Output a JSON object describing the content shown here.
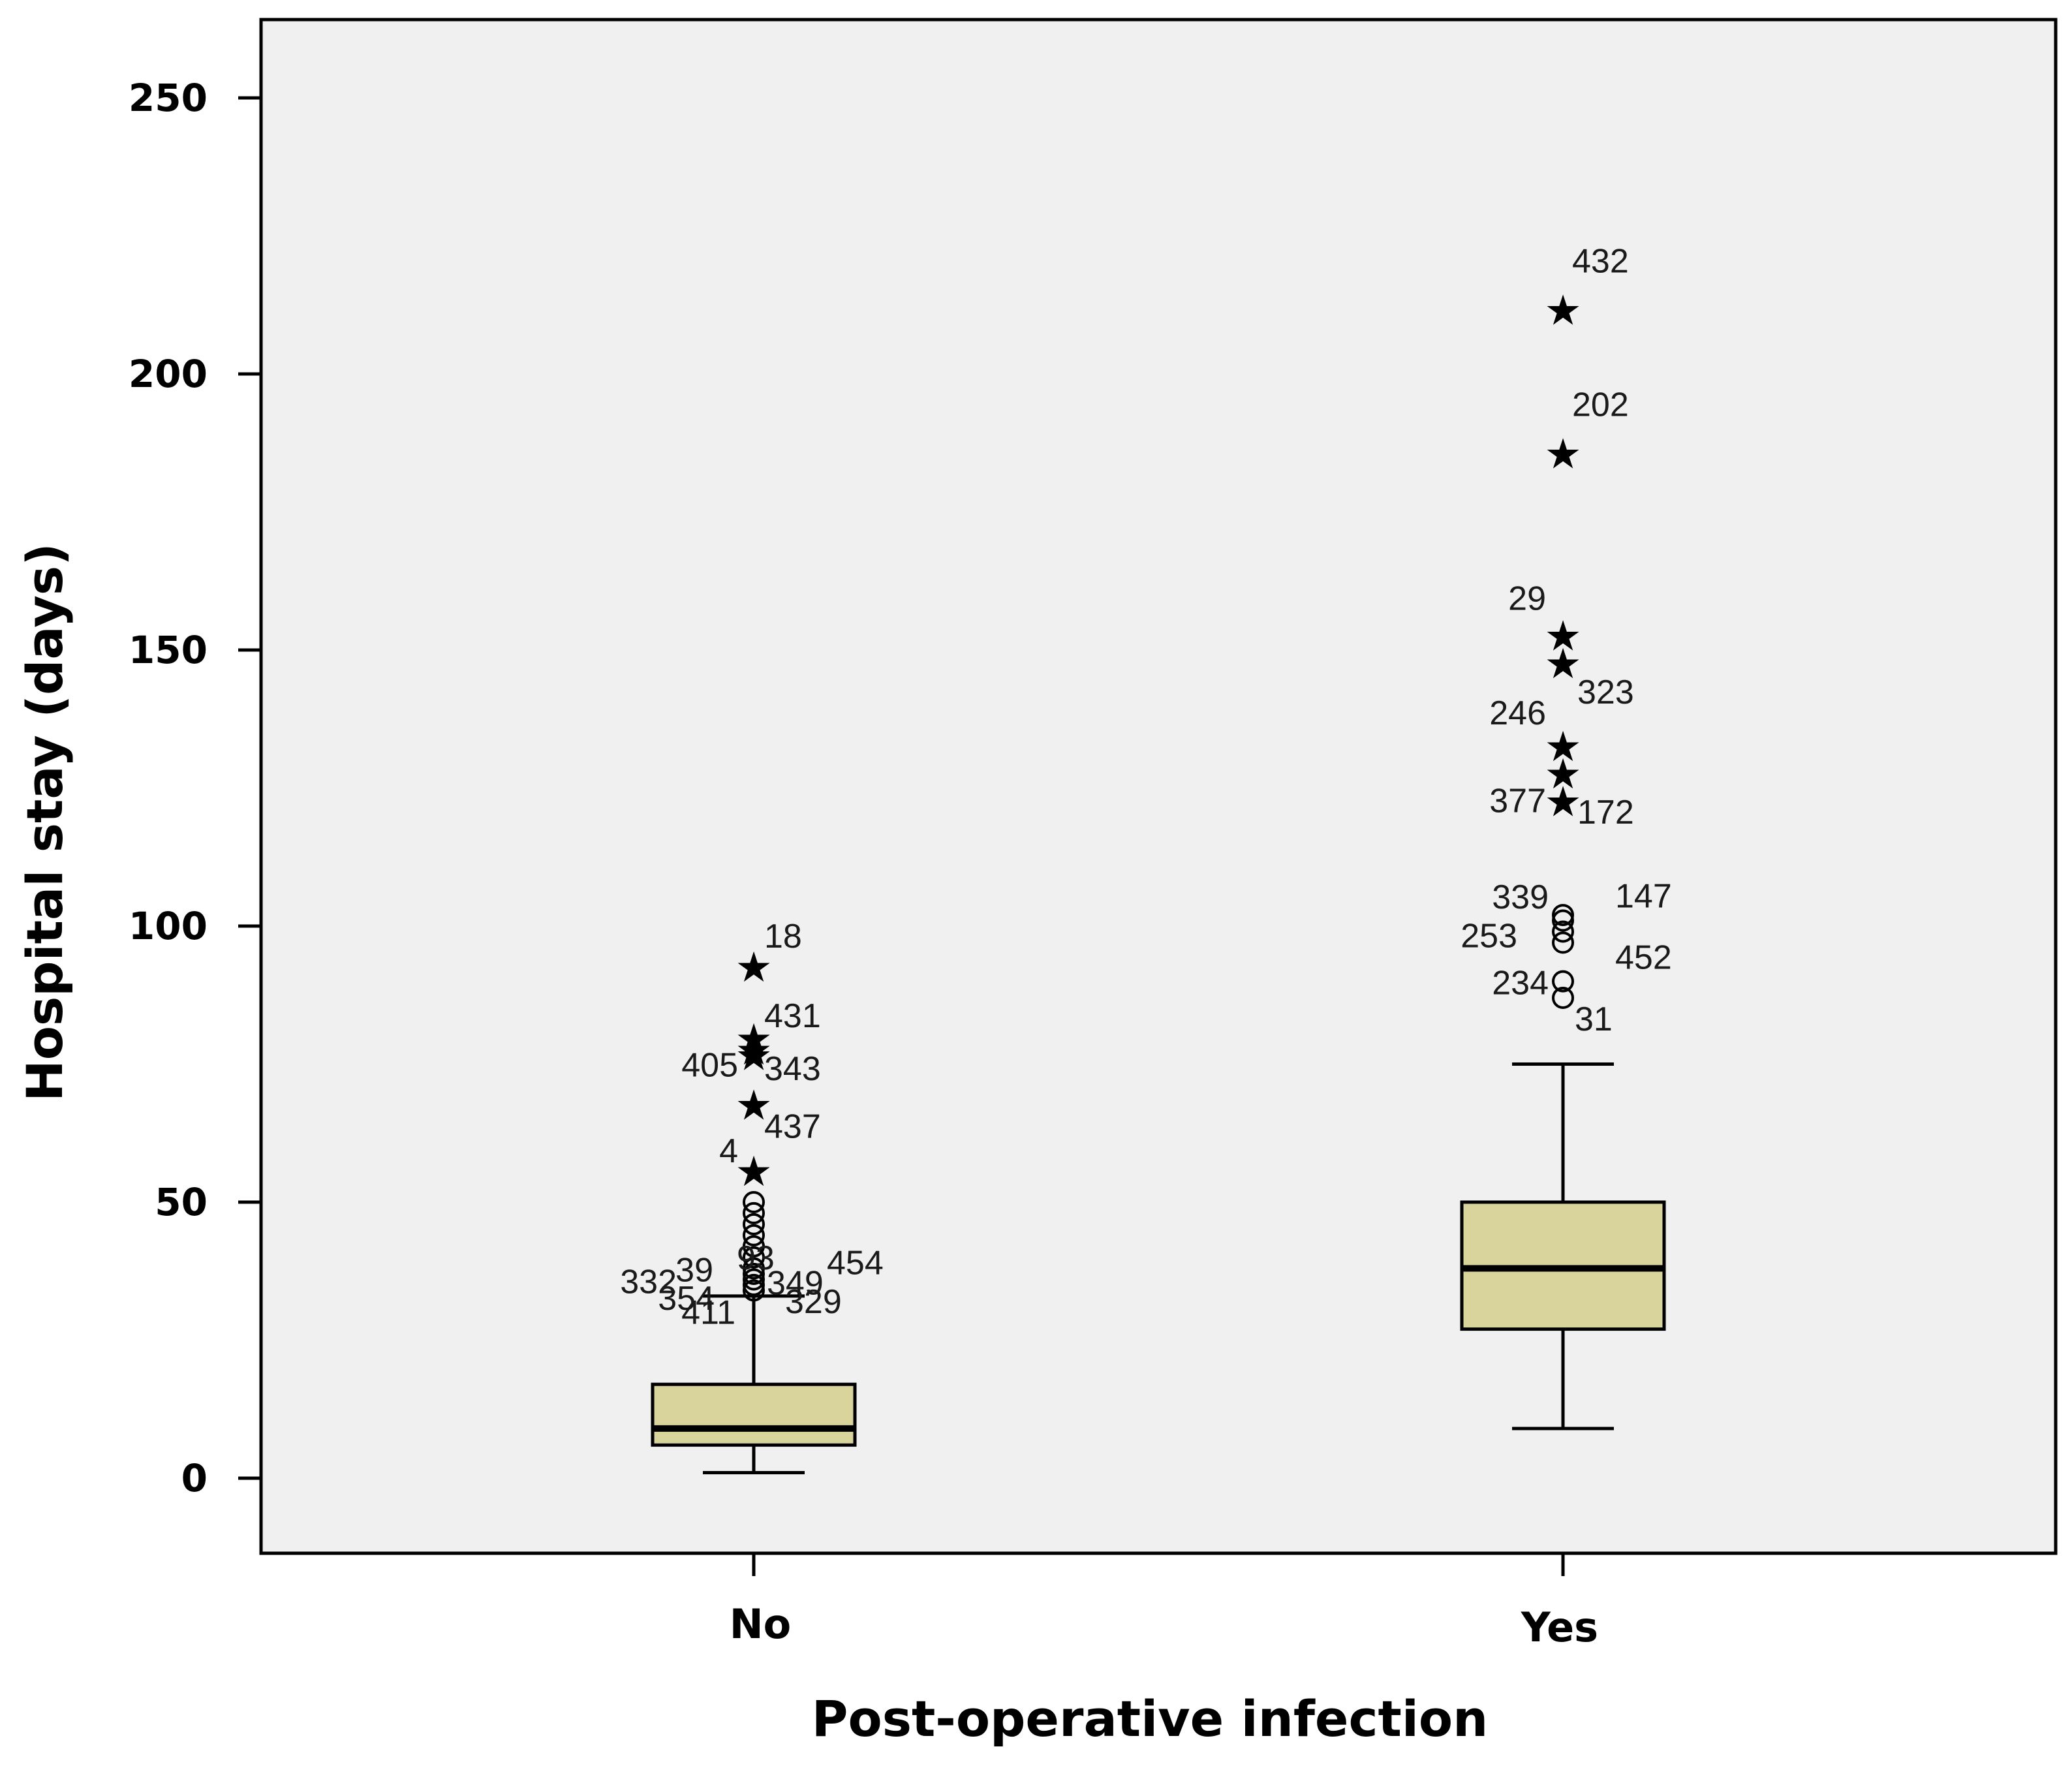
{
  "chart_data": {
    "type": "boxplot",
    "xlabel": "Post-operative infection",
    "ylabel": "Hospital stay (days)",
    "ylim": [
      -14,
      264
    ],
    "yticks": [
      0,
      50,
      100,
      150,
      200,
      250
    ],
    "tick_labels": [
      "0",
      "50",
      "100",
      "150",
      "200",
      "250"
    ],
    "categories": [
      "No",
      "Yes"
    ],
    "groups": [
      {
        "category": "No",
        "min": 1,
        "q1": 6,
        "median": 9,
        "q3": 17,
        "max": 33,
        "outliers": [
          {
            "value": 34,
            "label": "332"
          },
          {
            "value": 35,
            "label": "354"
          },
          {
            "value": 36,
            "label": "411"
          },
          {
            "value": 37,
            "label": "329"
          },
          {
            "value": 38,
            "label": "349"
          },
          {
            "value": 40,
            "label": "454"
          },
          {
            "value": 42,
            "label": "39"
          },
          {
            "value": 44,
            "label": "93"
          },
          {
            "value": 46,
            "label": ""
          },
          {
            "value": 48,
            "label": ""
          },
          {
            "value": 50,
            "label": ""
          }
        ],
        "extremes": [
          {
            "value": 56,
            "label": "4"
          },
          {
            "value": 68,
            "label": "437"
          },
          {
            "value": 77,
            "label": "405"
          },
          {
            "value": 78,
            "label": "343"
          },
          {
            "value": 80,
            "label": "431"
          },
          {
            "value": 93,
            "label": "18"
          }
        ]
      },
      {
        "category": "Yes",
        "min": 9,
        "q1": 27,
        "median": 38,
        "q3": 50,
        "max": 75,
        "outliers": [
          {
            "value": 87,
            "label": "31"
          },
          {
            "value": 90,
            "label": "234"
          },
          {
            "value": 97,
            "label": "452"
          },
          {
            "value": 99,
            "label": "253"
          },
          {
            "value": 101,
            "label": "147"
          },
          {
            "value": 102,
            "label": "339"
          }
        ],
        "extremes": [
          {
            "value": 123,
            "label": "377"
          },
          {
            "value": 128,
            "label": "172"
          },
          {
            "value": 133,
            "label": "246"
          },
          {
            "value": 148,
            "label": "323"
          },
          {
            "value": 153,
            "label": "29"
          },
          {
            "value": 186,
            "label": "202"
          },
          {
            "value": 212,
            "label": "432"
          }
        ]
      }
    ]
  }
}
